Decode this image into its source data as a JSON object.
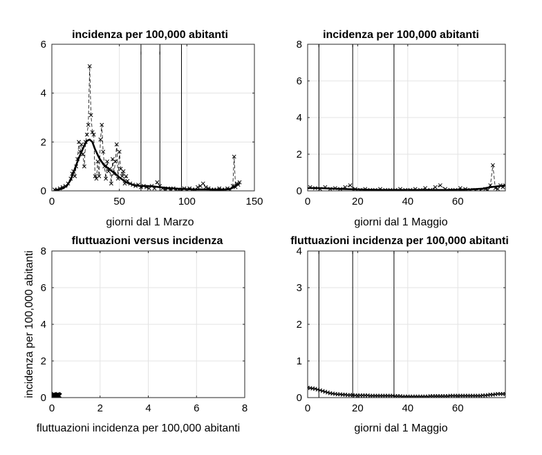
{
  "chart_data": [
    {
      "type": "line",
      "title": "incidenza per 100,000 abitanti",
      "xlabel": "giorni dal 1 Marzo",
      "ylabel": "",
      "xlim": [
        0,
        150
      ],
      "ylim": [
        0,
        6
      ],
      "xticks": [
        0,
        50,
        100,
        150
      ],
      "yticks": [
        0,
        2,
        4,
        6
      ],
      "grid": true,
      "vlines": [
        66,
        80,
        96
      ],
      "series": [
        {
          "style": "dashed-with-x-markers",
          "x": [
            2,
            4,
            6,
            8,
            10,
            12,
            14,
            15,
            16,
            17,
            18,
            19,
            20,
            21,
            22,
            23,
            24,
            25,
            26,
            27,
            28,
            29,
            30,
            31,
            32,
            33,
            34,
            35,
            36,
            37,
            38,
            39,
            40,
            41,
            42,
            43,
            44,
            45,
            46,
            47,
            48,
            49,
            50,
            51,
            52,
            53,
            54,
            55,
            56,
            58,
            60,
            62,
            64,
            66,
            68,
            70,
            72,
            74,
            76,
            78,
            80,
            82,
            84,
            86,
            88,
            90,
            92,
            94,
            96,
            98,
            100,
            102,
            104,
            106,
            108,
            110,
            112,
            114,
            116,
            118,
            120,
            122,
            124,
            126,
            128,
            130,
            132,
            134,
            135,
            136,
            137,
            138,
            139
          ],
          "values": [
            0.05,
            0.05,
            0.1,
            0.15,
            0.2,
            0.3,
            0.5,
            0.7,
            0.8,
            0.6,
            1.0,
            1.3,
            2.0,
            1.6,
            1.9,
            1.5,
            1.0,
            2.0,
            2.3,
            2.7,
            5.1,
            3.1,
            2.4,
            2.3,
            0.6,
            0.5,
            1.2,
            0.6,
            2.1,
            2.7,
            1.6,
            1.0,
            0.5,
            1.2,
            0.8,
            0.9,
            0.3,
            1.3,
            0.7,
            1.2,
            1.9,
            0.5,
            1.6,
            0.9,
            0.6,
            0.8,
            0.3,
            0.6,
            0.4,
            0.3,
            0.25,
            0.2,
            0.25,
            0.15,
            0.2,
            0.15,
            0.1,
            0.2,
            0.1,
            0.35,
            0.2,
            0.1,
            0.05,
            0.1,
            0.05,
            0.1,
            0.05,
            0.05,
            0.05,
            0.1,
            0.05,
            0.1,
            0.05,
            0.05,
            0.15,
            0.2,
            0.3,
            0.15,
            0.1,
            0.05,
            0.05,
            0.05,
            0.1,
            0.05,
            0.05,
            0.1,
            0.05,
            0.2,
            1.4,
            0.15,
            0.3,
            0.25,
            0.35
          ]
        },
        {
          "style": "thick-solid",
          "x": [
            2,
            5,
            8,
            11,
            14,
            17,
            20,
            22,
            24,
            26,
            28,
            30,
            32,
            35,
            38,
            42,
            46,
            50,
            55,
            60,
            65,
            70,
            75,
            80,
            85,
            90,
            95,
            100,
            105,
            110,
            115,
            120,
            125,
            130,
            133,
            136,
            139
          ],
          "values": [
            0.02,
            0.05,
            0.1,
            0.2,
            0.45,
            0.9,
            1.35,
            1.6,
            1.85,
            2.05,
            2.1,
            2.0,
            1.7,
            1.35,
            1.1,
            0.9,
            0.75,
            0.55,
            0.35,
            0.25,
            0.2,
            0.2,
            0.18,
            0.15,
            0.12,
            0.1,
            0.08,
            0.07,
            0.06,
            0.06,
            0.06,
            0.05,
            0.05,
            0.06,
            0.1,
            0.2,
            0.3
          ]
        }
      ]
    },
    {
      "type": "line",
      "title": "incidenza per 100,000 abitanti",
      "xlabel": "giorni dal 1 Maggio",
      "ylabel": "",
      "xlim": [
        0,
        79
      ],
      "ylim": [
        0,
        8
      ],
      "xticks": [
        0,
        20,
        40,
        60
      ],
      "yticks": [
        0,
        2,
        4,
        6,
        8
      ],
      "grid": true,
      "vlines": [
        4.5,
        18,
        34.5
      ],
      "series": [
        {
          "style": "dashed-with-x-markers",
          "x": [
            1,
            3,
            5,
            7,
            9,
            11,
            13,
            15,
            17,
            19,
            21,
            23,
            25,
            27,
            29,
            31,
            33,
            35,
            37,
            39,
            41,
            43,
            45,
            47,
            49,
            51,
            53,
            55,
            57,
            59,
            61,
            63,
            65,
            67,
            69,
            71,
            72,
            73,
            74,
            75,
            76,
            77,
            78,
            79
          ],
          "values": [
            0.2,
            0.15,
            0.1,
            0.2,
            0.1,
            0.15,
            0.1,
            0.2,
            0.3,
            0.1,
            0.05,
            0.1,
            0.05,
            0.05,
            0.1,
            0.05,
            0.05,
            0.05,
            0.1,
            0.05,
            0.05,
            0.1,
            0.05,
            0.15,
            0.05,
            0.2,
            0.3,
            0.1,
            0.05,
            0.05,
            0.15,
            0.1,
            0.05,
            0.05,
            0.05,
            0.1,
            0.05,
            0.3,
            1.4,
            0.15,
            0.1,
            0.3,
            0.2,
            0.3
          ]
        },
        {
          "style": "thick-solid",
          "x": [
            0,
            5,
            10,
            15,
            20,
            25,
            30,
            35,
            40,
            45,
            50,
            55,
            60,
            65,
            70,
            73,
            76,
            79
          ],
          "values": [
            0.15,
            0.15,
            0.12,
            0.1,
            0.08,
            0.06,
            0.05,
            0.05,
            0.05,
            0.05,
            0.05,
            0.05,
            0.06,
            0.08,
            0.12,
            0.2,
            0.25,
            0.3
          ]
        }
      ]
    },
    {
      "type": "scatter",
      "title": "fluttuazioni versus incidenza",
      "xlabel": "fluttuazioni incidenza per 100,000 abitanti",
      "ylabel": "incidenza per 100,000 abitanti",
      "xlim": [
        0,
        8
      ],
      "ylim": [
        0,
        8
      ],
      "xticks": [
        0,
        2,
        4,
        6,
        8
      ],
      "yticks": [
        0,
        2,
        4,
        6,
        8
      ],
      "grid": true,
      "series": [
        {
          "style": "x-markers",
          "x": [
            0.05,
            0.08,
            0.1,
            0.12,
            0.15,
            0.18,
            0.2,
            0.25,
            0.1,
            0.15,
            0.2,
            0.05,
            0.3
          ],
          "values": [
            0.05,
            0.08,
            0.1,
            0.05,
            0.1,
            0.12,
            0.08,
            0.15,
            0.15,
            0.05,
            0.12,
            0.12,
            0.1
          ]
        }
      ]
    },
    {
      "type": "line",
      "title": "fluttuazioni incidenza per 100,000 abitanti",
      "xlabel": "giorni dal 1 Maggio",
      "ylabel": "",
      "xlim": [
        0,
        79
      ],
      "ylim": [
        0,
        4
      ],
      "xticks": [
        0,
        20,
        40,
        60
      ],
      "yticks": [
        0,
        1,
        2,
        3,
        4
      ],
      "grid": true,
      "vlines": [
        4.5,
        18,
        34.5
      ],
      "series": [
        {
          "style": "solid-with-x-markers",
          "x": [
            0,
            1,
            2,
            3,
            4,
            5,
            6,
            7,
            8,
            9,
            10,
            11,
            12,
            13,
            14,
            15,
            16,
            17,
            18,
            19,
            20,
            21,
            22,
            23,
            24,
            25,
            26,
            27,
            28,
            29,
            30,
            31,
            32,
            33,
            34,
            35,
            36,
            37,
            38,
            39,
            40,
            41,
            42,
            43,
            44,
            45,
            46,
            47,
            48,
            49,
            50,
            51,
            52,
            53,
            54,
            55,
            56,
            57,
            58,
            59,
            60,
            61,
            62,
            63,
            64,
            65,
            66,
            67,
            68,
            69,
            70,
            71,
            72,
            73,
            74,
            75,
            76,
            77,
            78,
            79
          ],
          "values": [
            0.27,
            0.26,
            0.25,
            0.24,
            0.22,
            0.2,
            0.18,
            0.16,
            0.14,
            0.12,
            0.11,
            0.1,
            0.09,
            0.09,
            0.08,
            0.08,
            0.07,
            0.07,
            0.07,
            0.06,
            0.06,
            0.06,
            0.06,
            0.06,
            0.06,
            0.05,
            0.05,
            0.05,
            0.05,
            0.05,
            0.05,
            0.05,
            0.05,
            0.05,
            0.05,
            0.04,
            0.04,
            0.04,
            0.03,
            0.03,
            0.03,
            0.03,
            0.03,
            0.03,
            0.03,
            0.03,
            0.03,
            0.03,
            0.03,
            0.04,
            0.04,
            0.04,
            0.04,
            0.04,
            0.04,
            0.04,
            0.04,
            0.05,
            0.05,
            0.05,
            0.05,
            0.05,
            0.05,
            0.05,
            0.05,
            0.05,
            0.05,
            0.05,
            0.05,
            0.05,
            0.06,
            0.06,
            0.07,
            0.08,
            0.08,
            0.09,
            0.1,
            0.1,
            0.1,
            0.1
          ]
        }
      ]
    }
  ]
}
